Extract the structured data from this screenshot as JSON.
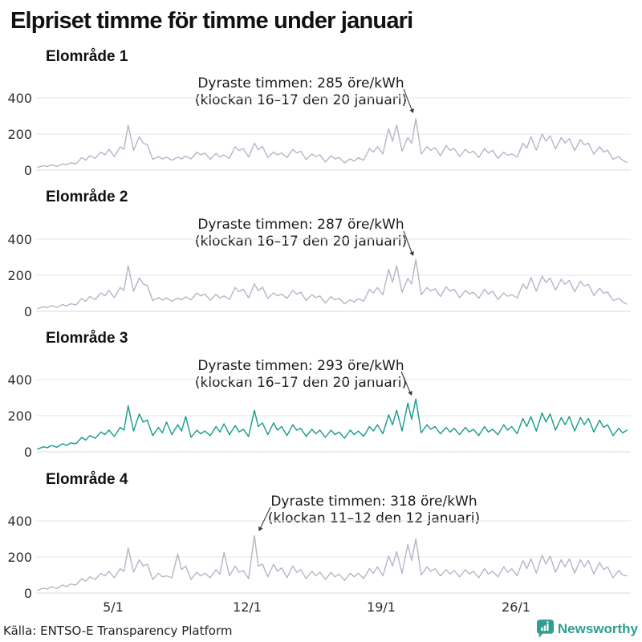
{
  "title": "Elpriset timme för timme under januari",
  "source": {
    "label": "Källa: ENTSO-E Transparency Platform"
  },
  "brand": {
    "name": "Newsworthy",
    "color": "#2f9e8e",
    "logo_icon": "bar-chart-speech-bubble-icon"
  },
  "colors": {
    "line_default": "#b6b5c8",
    "line_highlight": "#169a8c",
    "grid": "#e4e4e8",
    "arrow": "#3a3a3a"
  },
  "chart_data": [
    {
      "type": "line",
      "title": "Elområde 1",
      "ylim": [
        0,
        500
      ],
      "yticks": [
        400,
        200,
        0
      ],
      "ytick_labels": [
        "400",
        "200",
        "0"
      ],
      "xticks": [
        "5/1",
        "12/1",
        "19/1",
        "26/1"
      ],
      "grid": true,
      "annotation": {
        "line1": "Dyraste timmen: 285 öre/kWh",
        "line2": "(klockan 16–17 den 20 januari)",
        "peak_value_ore_per_kwh": 285,
        "peak_hours": "16–17",
        "peak_date": "20 januari"
      },
      "series": [
        {
          "name": "Elområde 1",
          "color": "#b6b5c8",
          "unit": "öre/kWh",
          "days": 31,
          "points_per_day": 4,
          "values": [
            15,
            25,
            20,
            30,
            20,
            35,
            30,
            40,
            35,
            70,
            55,
            80,
            65,
            100,
            85,
            115,
            75,
            130,
            115,
            250,
            110,
            185,
            150,
            140,
            60,
            75,
            62,
            72,
            55,
            72,
            62,
            78,
            62,
            100,
            85,
            95,
            60,
            92,
            72,
            85,
            65,
            130,
            108,
            120,
            72,
            150,
            112,
            132,
            70,
            100,
            85,
            95,
            70,
            115,
            95,
            105,
            58,
            90,
            75,
            85,
            45,
            80,
            62,
            70,
            40,
            62,
            50,
            68,
            55,
            120,
            100,
            130,
            90,
            230,
            160,
            250,
            105,
            180,
            150,
            285,
            90,
            130,
            110,
            125,
            80,
            135,
            110,
            120,
            75,
            115,
            95,
            105,
            70,
            120,
            95,
            110,
            65,
            100,
            82,
            90,
            72,
            150,
            122,
            185,
            110,
            200,
            160,
            190,
            118,
            180,
            150,
            175,
            108,
            170,
            140,
            150,
            88,
            130,
            100,
            110,
            60,
            75,
            55,
            42
          ]
        }
      ]
    },
    {
      "type": "line",
      "title": "Elområde 2",
      "ylim": [
        0,
        500
      ],
      "yticks": [
        400,
        200,
        0
      ],
      "ytick_labels": [
        "400",
        "200",
        "0"
      ],
      "xticks": [
        "5/1",
        "12/1",
        "19/1",
        "26/1"
      ],
      "grid": true,
      "annotation": {
        "line1": "Dyraste timmen: 287 öre/kWh",
        "line2": "(klockan 16–17 den 20 januari)",
        "peak_value_ore_per_kwh": 287,
        "peak_hours": "16–17",
        "peak_date": "20 januari"
      },
      "series": [
        {
          "name": "Elområde 2",
          "color": "#b6b5c8",
          "unit": "öre/kWh",
          "days": 31,
          "points_per_day": 4,
          "values": [
            15,
            26,
            20,
            32,
            22,
            38,
            30,
            42,
            36,
            72,
            56,
            82,
            66,
            102,
            86,
            116,
            76,
            132,
            116,
            252,
            112,
            186,
            152,
            142,
            60,
            76,
            62,
            74,
            56,
            74,
            64,
            80,
            64,
            102,
            86,
            96,
            62,
            94,
            74,
            86,
            66,
            132,
            110,
            122,
            74,
            152,
            114,
            134,
            72,
            102,
            86,
            96,
            72,
            116,
            96,
            106,
            60,
            92,
            76,
            86,
            46,
            82,
            64,
            72,
            42,
            64,
            52,
            70,
            56,
            122,
            102,
            132,
            92,
            232,
            162,
            252,
            106,
            182,
            152,
            287,
            92,
            132,
            112,
            126,
            82,
            136,
            112,
            122,
            76,
            116,
            96,
            106,
            72,
            122,
            96,
            112,
            66,
            102,
            84,
            92,
            74,
            152,
            124,
            187,
            112,
            195,
            160,
            185,
            118,
            178,
            150,
            172,
            108,
            168,
            140,
            150,
            88,
            128,
            100,
            108,
            60,
            72,
            52,
            40
          ]
        }
      ]
    },
    {
      "type": "line",
      "title": "Elområde 3",
      "ylim": [
        0,
        500
      ],
      "yticks": [
        400,
        200,
        0
      ],
      "ytick_labels": [
        "400",
        "200",
        "0"
      ],
      "xticks": [
        "5/1",
        "12/1",
        "19/1",
        "26/1"
      ],
      "grid": true,
      "annotation": {
        "line1": "Dyraste timmen: 293 öre/kWh",
        "line2": "(klockan 16–17 den 20 januari)",
        "peak_value_ore_per_kwh": 293,
        "peak_hours": "16–17",
        "peak_date": "20 januari"
      },
      "series": [
        {
          "name": "Elområde 3",
          "color": "#169a8c",
          "unit": "öre/kWh",
          "days": 31,
          "points_per_day": 4,
          "values": [
            15,
            28,
            22,
            35,
            25,
            45,
            35,
            50,
            45,
            80,
            65,
            90,
            75,
            110,
            95,
            120,
            85,
            135,
            120,
            255,
            115,
            210,
            165,
            175,
            90,
            135,
            105,
            165,
            95,
            150,
            115,
            195,
            80,
            120,
            100,
            115,
            90,
            140,
            110,
            155,
            95,
            145,
            110,
            125,
            85,
            230,
            140,
            160,
            95,
            160,
            120,
            140,
            90,
            150,
            120,
            130,
            85,
            125,
            100,
            120,
            80,
            120,
            95,
            110,
            75,
            120,
            95,
            115,
            85,
            140,
            115,
            150,
            100,
            205,
            150,
            230,
            115,
            270,
            180,
            293,
            105,
            150,
            125,
            140,
            100,
            135,
            110,
            130,
            95,
            135,
            110,
            125,
            90,
            140,
            110,
            125,
            95,
            150,
            120,
            140,
            100,
            185,
            140,
            195,
            115,
            215,
            165,
            210,
            120,
            190,
            150,
            195,
            115,
            190,
            150,
            185,
            110,
            175,
            135,
            150,
            90,
            130,
            105,
            120
          ]
        }
      ]
    },
    {
      "type": "line",
      "title": "Elområde 4",
      "ylim": [
        0,
        500
      ],
      "yticks": [
        400,
        200,
        0
      ],
      "ytick_labels": [
        "400",
        "200",
        "0"
      ],
      "xticks": [
        "5/1",
        "12/1",
        "19/1",
        "26/1"
      ],
      "grid": true,
      "annotation": {
        "line1": "Dyraste timmen: 318 öre/kWh",
        "line2": "(klockan 11–12 den 12 januari)",
        "peak_value_ore_per_kwh": 318,
        "peak_hours": "11–12",
        "peak_date": "12 januari"
      },
      "series": [
        {
          "name": "Elområde 4",
          "color": "#b6b5c8",
          "unit": "öre/kWh",
          "days": 31,
          "points_per_day": 4,
          "values": [
            15,
            28,
            22,
            35,
            25,
            45,
            35,
            50,
            45,
            80,
            65,
            90,
            75,
            110,
            95,
            120,
            85,
            135,
            120,
            250,
            115,
            185,
            150,
            160,
            75,
            110,
            90,
            95,
            85,
            215,
            130,
            150,
            75,
            115,
            95,
            110,
            85,
            130,
            105,
            225,
            95,
            150,
            115,
            125,
            80,
            318,
            150,
            160,
            90,
            160,
            120,
            140,
            85,
            150,
            115,
            130,
            80,
            120,
            95,
            115,
            75,
            115,
            90,
            105,
            70,
            110,
            90,
            110,
            80,
            135,
            110,
            145,
            95,
            205,
            150,
            230,
            110,
            270,
            180,
            300,
            100,
            145,
            120,
            135,
            95,
            130,
            105,
            125,
            90,
            130,
            105,
            120,
            85,
            135,
            105,
            120,
            90,
            145,
            115,
            135,
            95,
            180,
            135,
            190,
            110,
            210,
            160,
            205,
            115,
            185,
            145,
            190,
            110,
            185,
            145,
            180,
            105,
            170,
            130,
            145,
            85,
            125,
            100,
            95
          ]
        }
      ]
    }
  ]
}
